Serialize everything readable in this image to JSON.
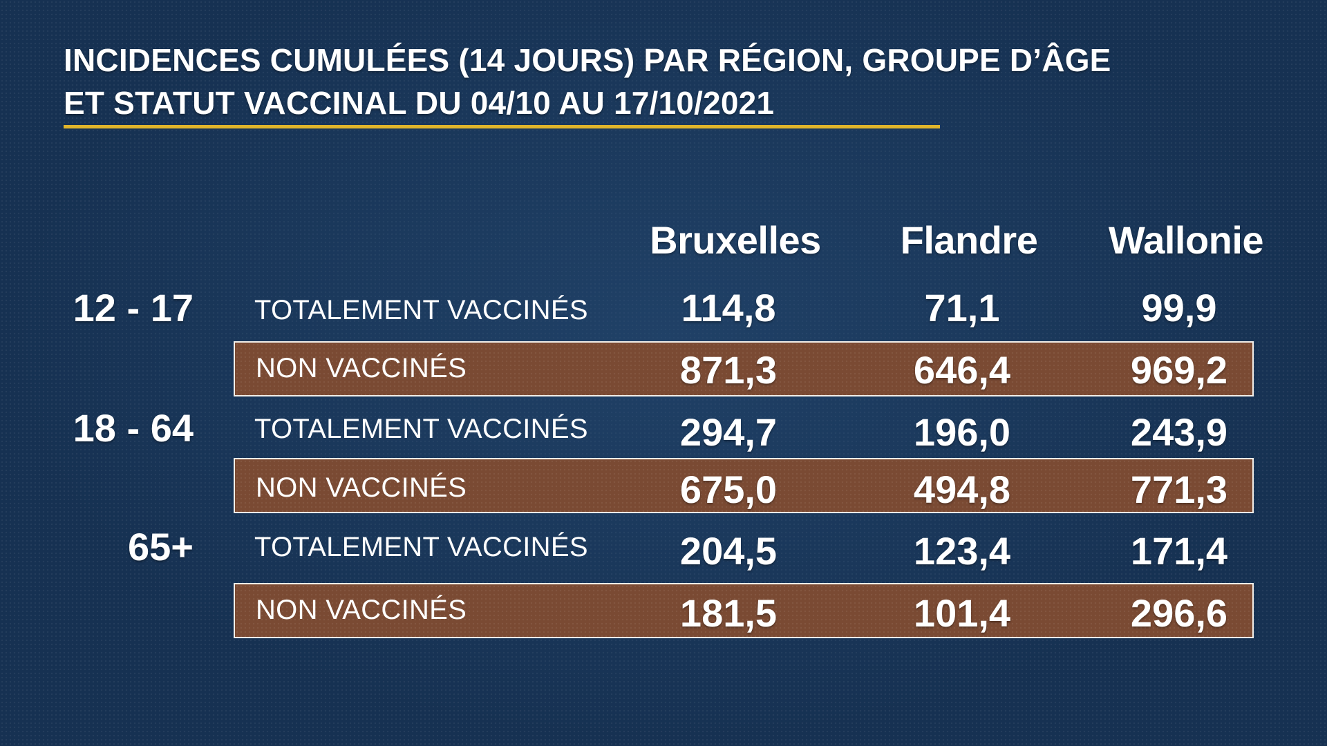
{
  "chart_data": {
    "type": "table",
    "title_lines": [
      "INCIDENCES CUMULÉES (14 JOURS) PAR RÉGION, GROUPE D’ÂGE",
      "ET STATUT VACCINAL DU 04/10 AU 17/10/2021"
    ],
    "columns": [
      "Bruxelles",
      "Flandre",
      "Wallonie"
    ],
    "groups": [
      {
        "age": "12 - 17",
        "rows": [
          {
            "status": "TOTALEMENT VACCINÉS",
            "values": [
              "114,8",
              "71,1",
              "99,9"
            ]
          },
          {
            "status": "NON VACCINÉS",
            "values": [
              "871,3",
              "646,4",
              "969,2"
            ]
          }
        ]
      },
      {
        "age": "18 - 64",
        "rows": [
          {
            "status": "TOTALEMENT VACCINÉS",
            "values": [
              "294,7",
              "196,0",
              "243,9"
            ]
          },
          {
            "status": "NON VACCINÉS",
            "values": [
              "675,0",
              "494,8",
              "771,3"
            ]
          }
        ]
      },
      {
        "age": "65+",
        "rows": [
          {
            "status": "TOTALEMENT VACCINÉS",
            "values": [
              "204,5",
              "123,4",
              "171,4"
            ]
          },
          {
            "status": "NON VACCINÉS",
            "values": [
              "181,5",
              "101,4",
              "296,6"
            ]
          }
        ]
      }
    ]
  },
  "colors": {
    "background": "#163152",
    "title_rule": "#e0b52b",
    "unvaccinated_row": "#7a4a33",
    "row_border": "#f3efe9",
    "text": "#ffffff"
  }
}
